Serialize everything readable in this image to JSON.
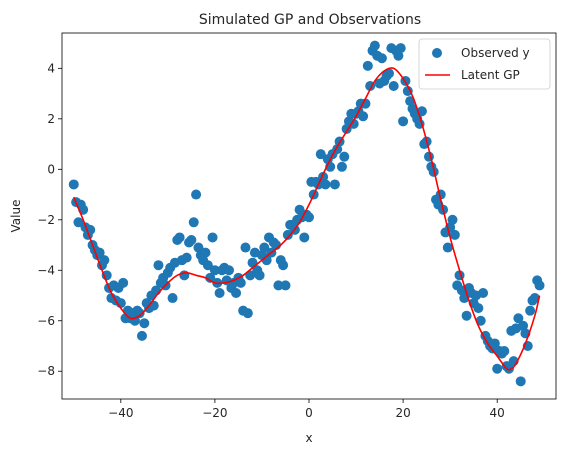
{
  "chart_data": {
    "type": "scatter",
    "title": "Simulated GP and Observations",
    "xlabel": "x",
    "ylabel": "Value",
    "xlim": [
      -52.5,
      52.5
    ],
    "ylim": [
      -9.1,
      5.4
    ],
    "xticks": [
      -40,
      -20,
      0,
      20,
      40
    ],
    "xtick_labels": [
      "−40",
      "−20",
      "0",
      "20",
      "40"
    ],
    "yticks": [
      -8,
      -6,
      -4,
      -2,
      0,
      2,
      4
    ],
    "ytick_labels": [
      "−8",
      "−6",
      "−4",
      "−2",
      "0",
      "2",
      "4"
    ],
    "grid": false,
    "legend": "top-right",
    "series": [
      {
        "name": "Observed y",
        "kind": "scatter",
        "color": "#1f77b4",
        "points": [
          [
            -50.0,
            -0.6
          ],
          [
            -49.5,
            -1.3
          ],
          [
            -49.0,
            -2.1
          ],
          [
            -48.5,
            -1.4
          ],
          [
            -48.0,
            -1.6
          ],
          [
            -47.5,
            -2.3
          ],
          [
            -47.0,
            -2.6
          ],
          [
            -46.5,
            -2.4
          ],
          [
            -46.0,
            -3.0
          ],
          [
            -45.5,
            -3.2
          ],
          [
            -45.0,
            -3.4
          ],
          [
            -44.5,
            -3.3
          ],
          [
            -44.0,
            -3.8
          ],
          [
            -43.5,
            -3.6
          ],
          [
            -43.0,
            -4.2
          ],
          [
            -42.5,
            -4.7
          ],
          [
            -42.0,
            -5.1
          ],
          [
            -41.5,
            -4.6
          ],
          [
            -41.0,
            -5.2
          ],
          [
            -40.5,
            -4.7
          ],
          [
            -40.0,
            -5.3
          ],
          [
            -39.5,
            -4.5
          ],
          [
            -39.0,
            -5.9
          ],
          [
            -38.5,
            -5.6
          ],
          [
            -38.0,
            -5.9
          ],
          [
            -37.5,
            -5.7
          ],
          [
            -37.0,
            -6.0
          ],
          [
            -36.5,
            -5.6
          ],
          [
            -36.0,
            -5.7
          ],
          [
            -35.5,
            -6.6
          ],
          [
            -35.0,
            -6.1
          ],
          [
            -34.5,
            -5.3
          ],
          [
            -34.0,
            -5.5
          ],
          [
            -33.5,
            -5.0
          ],
          [
            -33.0,
            -5.4
          ],
          [
            -32.5,
            -4.8
          ],
          [
            -32.0,
            -3.8
          ],
          [
            -31.5,
            -4.5
          ],
          [
            -31.0,
            -4.3
          ],
          [
            -30.5,
            -4.6
          ],
          [
            -30.0,
            -4.1
          ],
          [
            -29.5,
            -3.9
          ],
          [
            -29.0,
            -5.1
          ],
          [
            -28.5,
            -3.7
          ],
          [
            -28.0,
            -2.8
          ],
          [
            -27.5,
            -2.7
          ],
          [
            -27.0,
            -3.6
          ],
          [
            -26.5,
            -4.2
          ],
          [
            -26.0,
            -3.5
          ],
          [
            -25.5,
            -2.9
          ],
          [
            -25.0,
            -2.8
          ],
          [
            -24.5,
            -2.1
          ],
          [
            -24.0,
            -1.0
          ],
          [
            -23.5,
            -3.1
          ],
          [
            -23.0,
            -3.4
          ],
          [
            -22.5,
            -3.6
          ],
          [
            -22.0,
            -3.3
          ],
          [
            -21.5,
            -3.8
          ],
          [
            -21.0,
            -4.3
          ],
          [
            -20.5,
            -2.7
          ],
          [
            -20.0,
            -4.0
          ],
          [
            -19.5,
            -4.5
          ],
          [
            -19.0,
            -4.9
          ],
          [
            -18.5,
            -4.0
          ],
          [
            -18.0,
            -3.9
          ],
          [
            -17.5,
            -4.4
          ],
          [
            -17.0,
            -4.0
          ],
          [
            -16.5,
            -4.7
          ],
          [
            -16.0,
            -4.5
          ],
          [
            -15.5,
            -4.9
          ],
          [
            -15.0,
            -4.3
          ],
          [
            -14.5,
            -4.5
          ],
          [
            -14.0,
            -5.6
          ],
          [
            -13.5,
            -3.1
          ],
          [
            -13.0,
            -5.7
          ],
          [
            -12.5,
            -4.2
          ],
          [
            -12.0,
            -3.7
          ],
          [
            -11.5,
            -3.3
          ],
          [
            -11.0,
            -4.0
          ],
          [
            -10.5,
            -4.2
          ],
          [
            -10.0,
            -3.4
          ],
          [
            -9.5,
            -3.1
          ],
          [
            -9.0,
            -3.6
          ],
          [
            -8.5,
            -2.7
          ],
          [
            -8.0,
            -3.3
          ],
          [
            -7.5,
            -2.9
          ],
          [
            -7.0,
            -3.0
          ],
          [
            -6.5,
            -4.6
          ],
          [
            -6.0,
            -3.6
          ],
          [
            -5.5,
            -3.8
          ],
          [
            -5.0,
            -4.6
          ],
          [
            -4.5,
            -2.6
          ],
          [
            -4.0,
            -2.2
          ],
          [
            -3.5,
            -2.2
          ],
          [
            -3.0,
            -2.4
          ],
          [
            -2.5,
            -2.0
          ],
          [
            -2.0,
            -1.6
          ],
          [
            -1.5,
            -1.9
          ],
          [
            -1.0,
            -2.7
          ],
          [
            -0.5,
            -1.8
          ],
          [
            0.0,
            -1.9
          ],
          [
            0.5,
            -0.5
          ],
          [
            1.0,
            -1.0
          ],
          [
            1.5,
            -0.5
          ],
          [
            2.0,
            -0.6
          ],
          [
            2.5,
            0.6
          ],
          [
            3.0,
            -0.3
          ],
          [
            3.5,
            -0.6
          ],
          [
            4.0,
            0.4
          ],
          [
            4.5,
            0.1
          ],
          [
            5.0,
            0.6
          ],
          [
            5.5,
            -0.6
          ],
          [
            6.0,
            0.8
          ],
          [
            6.5,
            1.1
          ],
          [
            7.0,
            0.1
          ],
          [
            7.5,
            0.5
          ],
          [
            8.0,
            1.6
          ],
          [
            8.5,
            1.9
          ],
          [
            9.0,
            2.2
          ],
          [
            9.5,
            1.8
          ],
          [
            10.0,
            2.2
          ],
          [
            10.5,
            2.3
          ],
          [
            11.0,
            2.6
          ],
          [
            11.5,
            2.1
          ],
          [
            12.0,
            2.6
          ],
          [
            12.5,
            4.1
          ],
          [
            13.0,
            3.3
          ],
          [
            13.5,
            4.7
          ],
          [
            14.0,
            4.9
          ],
          [
            14.5,
            4.5
          ],
          [
            15.0,
            3.4
          ],
          [
            15.5,
            4.4
          ],
          [
            16.0,
            3.5
          ],
          [
            16.5,
            3.7
          ],
          [
            17.0,
            3.8
          ],
          [
            17.5,
            4.8
          ],
          [
            18.0,
            3.3
          ],
          [
            18.5,
            4.7
          ],
          [
            19.0,
            4.5
          ],
          [
            19.5,
            4.8
          ],
          [
            20.0,
            1.9
          ],
          [
            20.5,
            3.5
          ],
          [
            21.0,
            3.1
          ],
          [
            21.5,
            2.7
          ],
          [
            22.0,
            2.4
          ],
          [
            22.5,
            2.2
          ],
          [
            23.0,
            2.0
          ],
          [
            23.5,
            1.8
          ],
          [
            24.0,
            2.3
          ],
          [
            24.5,
            1.0
          ],
          [
            25.0,
            1.1
          ],
          [
            25.5,
            0.5
          ],
          [
            26.0,
            0.1
          ],
          [
            26.5,
            -0.1
          ],
          [
            27.0,
            -1.2
          ],
          [
            27.5,
            -1.4
          ],
          [
            28.0,
            -1.0
          ],
          [
            28.5,
            -1.6
          ],
          [
            29.0,
            -2.5
          ],
          [
            29.5,
            -3.1
          ],
          [
            30.0,
            -2.3
          ],
          [
            30.5,
            -2.0
          ],
          [
            31.0,
            -2.6
          ],
          [
            31.5,
            -4.6
          ],
          [
            32.0,
            -4.2
          ],
          [
            32.5,
            -4.8
          ],
          [
            33.0,
            -5.1
          ],
          [
            33.5,
            -5.8
          ],
          [
            34.0,
            -4.7
          ],
          [
            34.5,
            -4.9
          ],
          [
            35.0,
            -5.3
          ],
          [
            35.5,
            -5.0
          ],
          [
            36.0,
            -5.5
          ],
          [
            36.5,
            -6.0
          ],
          [
            37.0,
            -4.9
          ],
          [
            37.5,
            -6.6
          ],
          [
            38.0,
            -6.8
          ],
          [
            38.5,
            -7.0
          ],
          [
            39.0,
            -7.1
          ],
          [
            39.5,
            -6.9
          ],
          [
            40.0,
            -7.9
          ],
          [
            40.5,
            -7.2
          ],
          [
            41.0,
            -7.3
          ],
          [
            41.5,
            -7.2
          ],
          [
            42.0,
            -7.8
          ],
          [
            42.5,
            -7.9
          ],
          [
            43.0,
            -6.4
          ],
          [
            43.5,
            -7.6
          ],
          [
            44.0,
            -6.3
          ],
          [
            44.5,
            -5.9
          ],
          [
            45.0,
            -8.4
          ],
          [
            45.5,
            -6.2
          ],
          [
            46.0,
            -6.5
          ],
          [
            46.5,
            -7.0
          ],
          [
            47.0,
            -5.6
          ],
          [
            47.5,
            -5.2
          ],
          [
            48.0,
            -5.1
          ],
          [
            48.5,
            -4.4
          ],
          [
            49.0,
            -4.6
          ]
        ]
      },
      {
        "name": "Latent GP",
        "kind": "line",
        "color": "#ff0000",
        "points": [
          [
            -50,
            -1.1
          ],
          [
            -48,
            -2.0
          ],
          [
            -46,
            -3.0
          ],
          [
            -44,
            -4.0
          ],
          [
            -42,
            -4.9
          ],
          [
            -40,
            -5.5
          ],
          [
            -38,
            -5.9
          ],
          [
            -36,
            -5.8
          ],
          [
            -34,
            -5.4
          ],
          [
            -32,
            -4.9
          ],
          [
            -30,
            -4.5
          ],
          [
            -28,
            -4.2
          ],
          [
            -26,
            -4.1
          ],
          [
            -24,
            -4.2
          ],
          [
            -22,
            -4.3
          ],
          [
            -20,
            -4.5
          ],
          [
            -18,
            -4.5
          ],
          [
            -16,
            -4.4
          ],
          [
            -14,
            -4.2
          ],
          [
            -12,
            -3.9
          ],
          [
            -10,
            -3.6
          ],
          [
            -8,
            -3.3
          ],
          [
            -6,
            -3.0
          ],
          [
            -4,
            -2.6
          ],
          [
            -2,
            -2.1
          ],
          [
            0,
            -1.4
          ],
          [
            2,
            -0.6
          ],
          [
            4,
            0.2
          ],
          [
            6,
            0.9
          ],
          [
            8,
            1.5
          ],
          [
            10,
            2.1
          ],
          [
            12,
            2.8
          ],
          [
            14,
            3.5
          ],
          [
            16,
            3.9
          ],
          [
            18,
            4.0
          ],
          [
            20,
            3.6
          ],
          [
            22,
            2.9
          ],
          [
            24,
            1.8
          ],
          [
            26,
            0.4
          ],
          [
            28,
            -1.2
          ],
          [
            30,
            -2.7
          ],
          [
            32,
            -4.0
          ],
          [
            34,
            -5.2
          ],
          [
            36,
            -6.2
          ],
          [
            38,
            -6.9
          ],
          [
            40,
            -7.4
          ],
          [
            42,
            -7.9
          ],
          [
            43,
            -7.9
          ],
          [
            44,
            -7.7
          ],
          [
            46,
            -6.9
          ],
          [
            48,
            -5.8
          ],
          [
            49,
            -5.0
          ]
        ]
      }
    ]
  }
}
